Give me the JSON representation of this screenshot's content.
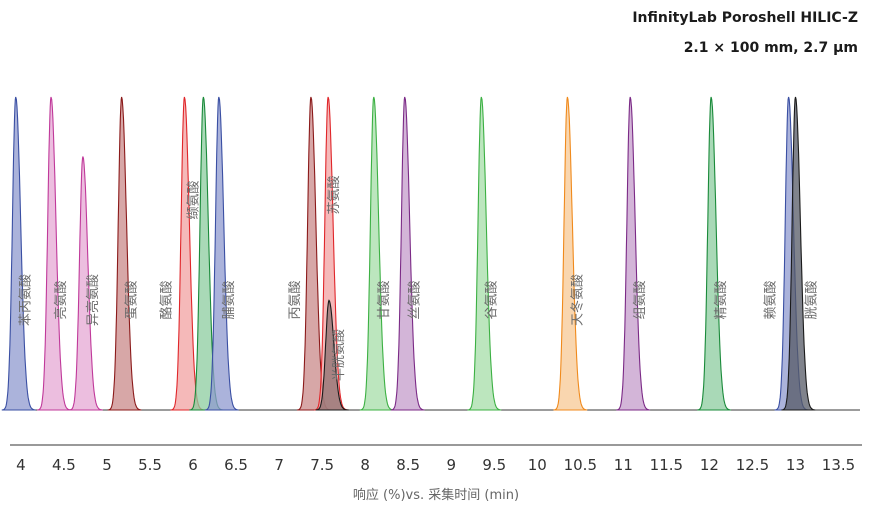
{
  "title_line1": "InfinityLab Poroshell HILIC-Z",
  "title_line2": "2.1 × 100 mm, 2.7 µm",
  "chart_data": {
    "type": "line",
    "xlabel": "响应 (%)vs. 采集时间 (min)",
    "xlim": [
      3.85,
      13.75
    ],
    "x_ticks": [
      4,
      4.5,
      5,
      5.5,
      6,
      6.5,
      7,
      7.5,
      8,
      8.5,
      9,
      9.5,
      10,
      10.5,
      11,
      11.5,
      12,
      12.5,
      13,
      13.5
    ],
    "x_tick_labels": [
      "4",
      "4.5",
      "5",
      "5.5",
      "6",
      "6.5",
      "7",
      "7.5",
      "8",
      "8.5",
      "9",
      "9.5",
      "10",
      "10.5",
      "11",
      "11.5",
      "12",
      "12.5",
      "13",
      "13.5"
    ],
    "peaks": [
      {
        "label": "苯丙氨酸",
        "rt": 3.94,
        "height": 100,
        "color": "#3a4fa3",
        "fill": "#8f99cf"
      },
      {
        "label": "亮氨酸",
        "rt": 4.35,
        "height": 100,
        "color": "#c0399a",
        "fill": "#e6a8d4"
      },
      {
        "label": "异亮氨酸",
        "rt": 4.72,
        "height": 81,
        "color": "#c0399a",
        "fill": "#e6a8d4"
      },
      {
        "label": "蛋氨酸",
        "rt": 5.17,
        "height": 100,
        "color": "#8b1a1a",
        "fill": "#c98a8a"
      },
      {
        "label": "酪氨酸",
        "rt": 5.9,
        "height": 100,
        "color": "#e0262a",
        "fill": "#f1a2a2"
      },
      {
        "label": "缬氨酸",
        "rt": 6.12,
        "height": 100,
        "color": "#1a8a3a",
        "fill": "#8ccc9f"
      },
      {
        "label": "脯氨酸",
        "rt": 6.3,
        "height": 100,
        "color": "#3a4fa3",
        "fill": "#8f99cf"
      },
      {
        "label": "丙氨酸",
        "rt": 7.37,
        "height": 100,
        "color": "#8b1a1a",
        "fill": "#c98a8a"
      },
      {
        "label": "苏氨酸",
        "rt": 7.57,
        "height": 100,
        "color": "#e0262a",
        "fill": "#f1a2a2"
      },
      {
        "label": "半胱氨酸",
        "rt": 7.58,
        "height": 35,
        "color": "#1a1a1a",
        "fill": "#8c7070"
      },
      {
        "label": "甘氨酸",
        "rt": 8.1,
        "height": 100,
        "color": "#3cb043",
        "fill": "#a6dda8"
      },
      {
        "label": "丝氨酸",
        "rt": 8.46,
        "height": 100,
        "color": "#7b2a86",
        "fill": "#c49ccb"
      },
      {
        "label": "谷氨酸",
        "rt": 9.35,
        "height": 100,
        "color": "#3cb043",
        "fill": "#a6dda8"
      },
      {
        "label": "天冬氨酸",
        "rt": 10.35,
        "height": 100,
        "color": "#f08a1c",
        "fill": "#f7c894"
      },
      {
        "label": "组氨酸",
        "rt": 11.08,
        "height": 100,
        "color": "#7b2a86",
        "fill": "#c49ccb"
      },
      {
        "label": "精氨酸",
        "rt": 12.02,
        "height": 100,
        "color": "#1a8a3a",
        "fill": "#8ccc9f"
      },
      {
        "label": "赖氨酸",
        "rt": 12.92,
        "height": 100,
        "color": "#3a4fa3",
        "fill": "#8f99cf"
      },
      {
        "label": "胱氨酸",
        "rt": 13.0,
        "height": 100,
        "color": "#1a1a1a",
        "fill": "#555a66"
      }
    ]
  }
}
